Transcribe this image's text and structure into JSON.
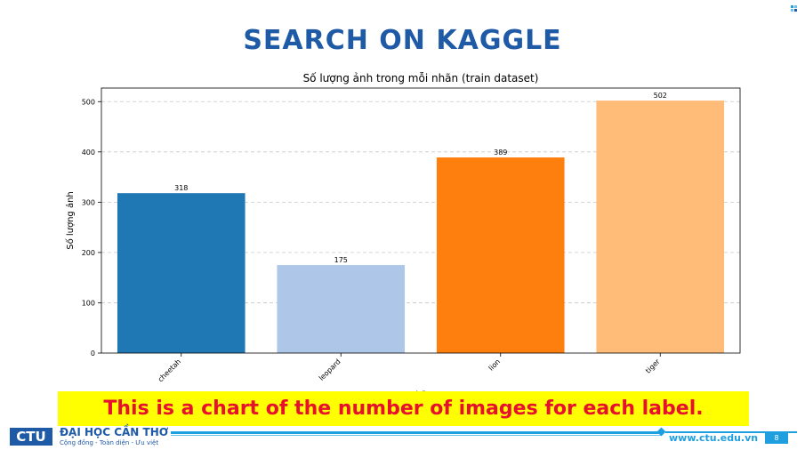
{
  "slide": {
    "title": "SEARCH ON KAGGLE",
    "caption": "This is a chart of the number of images for each label.",
    "page_number": "8"
  },
  "footer": {
    "logo": "CTU",
    "university": "ĐẠI HỌC CẦN THƠ",
    "motto": "Cộng đồng - Toàn diện - Ưu việt",
    "url": "www.ctu.edu.vn"
  },
  "colors": {
    "title": "#1f5aa6",
    "caption_bg": "#ffff00",
    "caption_text": "#e8112d",
    "accent": "#1f9fe0"
  },
  "chart_data": {
    "type": "bar",
    "title": "Số lượng ảnh trong mỗi nhãn (train dataset)",
    "xlabel": "Nhãn",
    "ylabel": "Số lượng ảnh",
    "categories": [
      "cheetah",
      "leopard",
      "lion",
      "tiger"
    ],
    "values": [
      318,
      175,
      389,
      502
    ],
    "colors": [
      "#1f77b4",
      "#aec7e8",
      "#ff7f0e",
      "#ffbb78"
    ],
    "ylim": [
      0,
      527
    ],
    "yticks": [
      0,
      100,
      200,
      300,
      400,
      500
    ],
    "grid": "y-dashed",
    "data_labels": true
  }
}
